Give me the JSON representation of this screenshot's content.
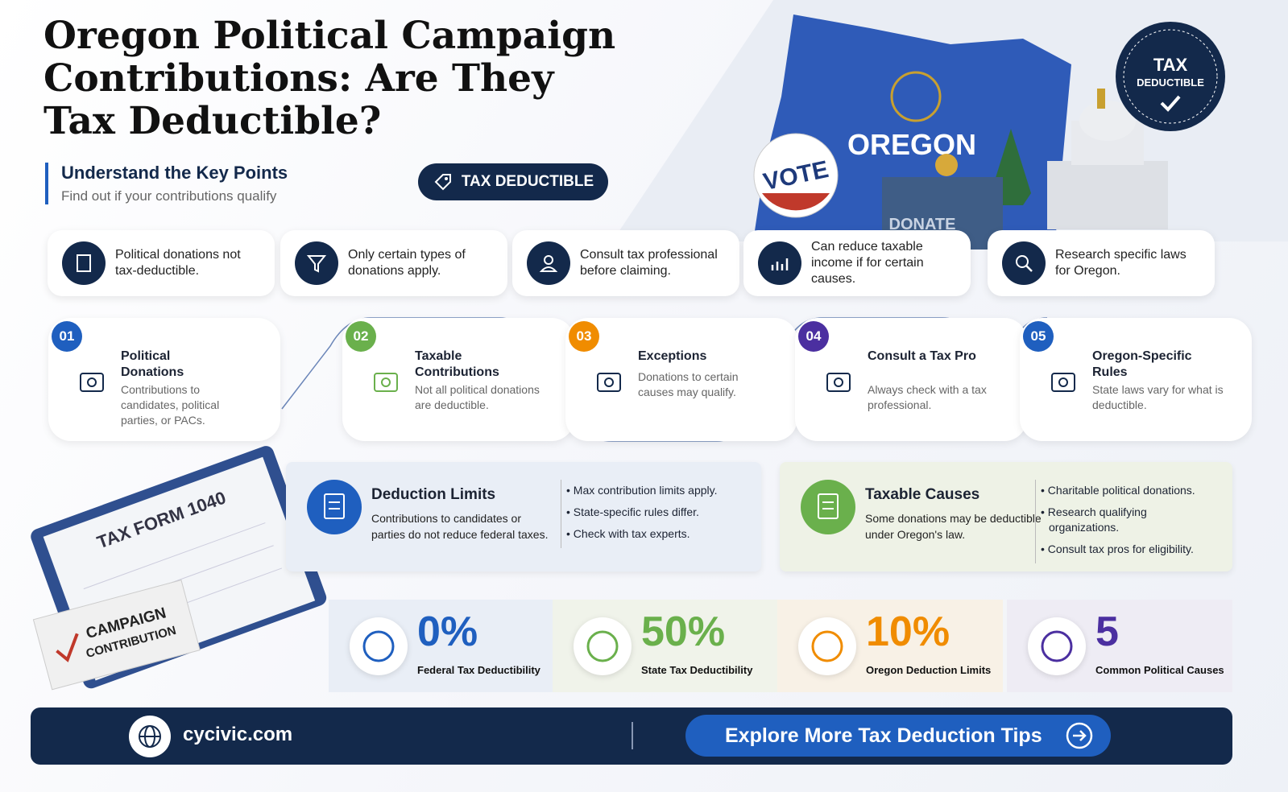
{
  "header": {
    "title": [
      "Oregon Political Campaign",
      "Contributions: Are They",
      "Tax Deductible?"
    ],
    "subtitle": "Understand the Key Points",
    "tagline": "Find out if your contributions qualify",
    "badge": "TAX DEDUCTIBLE"
  },
  "illustration": {
    "state": "OREGON",
    "vote": "VOTE",
    "box": "DONATE",
    "seal_top": "TAX",
    "seal_bottom": "DEDUCTIBLE",
    "form": "TAX FORM 1040",
    "sign_top": "CAMPAIGN",
    "sign_bottom": "CONTRIBUTION"
  },
  "key_points": [
    "Political donations not tax-deductible.",
    "Only certain types of donations apply.",
    "Consult tax professional before claiming.",
    "Can reduce taxable income if for certain causes.",
    "Research specific laws for Oregon."
  ],
  "steps": [
    {
      "number": "01",
      "title": "Political Donations",
      "text": "Contributions to candidates, political parties, or PACs."
    },
    {
      "number": "02",
      "title": "Taxable Contributions",
      "text": "Not all political donations are deductible."
    },
    {
      "number": "03",
      "title": "Exceptions",
      "text": "Donations to certain causes may qualify."
    },
    {
      "number": "04",
      "title": "Consult a Tax Pro",
      "text": "Always check with a tax professional."
    },
    {
      "number": "05",
      "title": "Oregon-Specific Rules",
      "text": "State laws vary for what is deductible."
    }
  ],
  "cards": [
    {
      "title": "Deduction Limits",
      "text": "Contributions to candidates or parties do not reduce federal taxes.",
      "bullets": [
        "Max contribution limits apply.",
        "State-specific rules differ.",
        "Check with tax experts."
      ]
    },
    {
      "title": "Taxable Causes",
      "text": "Some donations may be deductible under Oregon's law.",
      "bullets": [
        "Charitable political donations.",
        "Research qualifying organizations.",
        "Consult tax pros for eligibility."
      ]
    }
  ],
  "stats": [
    {
      "value": "0%",
      "label": "Federal Tax Deductibility"
    },
    {
      "value": "50%",
      "label": "State Tax Deductibility"
    },
    {
      "value": "10%",
      "label": "Oregon Deduction Limits"
    },
    {
      "value": "5",
      "label": "Common Political Causes"
    }
  ],
  "footer": {
    "site": "cycivic.com",
    "cta": "Explore More Tax Deduction Tips"
  }
}
